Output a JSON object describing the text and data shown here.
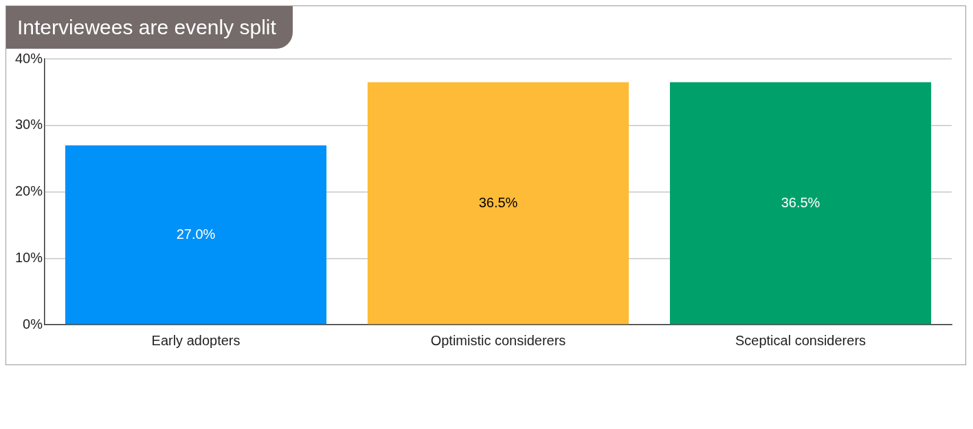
{
  "chart_data": {
    "type": "bar",
    "title": "Interviewees are evenly split",
    "categories": [
      "Early adopters",
      "Optimistic considerers",
      "Sceptical considerers"
    ],
    "values": [
      27.0,
      36.5,
      36.5
    ],
    "colors": [
      "#0091f9",
      "#fdbb38",
      "#00a06b"
    ],
    "value_labels": [
      "27.0%",
      "36.5%",
      "36.5%"
    ],
    "ylim": [
      0,
      40
    ],
    "yticks": [
      {
        "value": 0,
        "label": "0%"
      },
      {
        "value": 10,
        "label": "10%"
      },
      {
        "value": 20,
        "label": "20%"
      },
      {
        "value": 30,
        "label": "30%"
      },
      {
        "value": 40,
        "label": "40%"
      }
    ],
    "grid": "y",
    "legend": false
  }
}
